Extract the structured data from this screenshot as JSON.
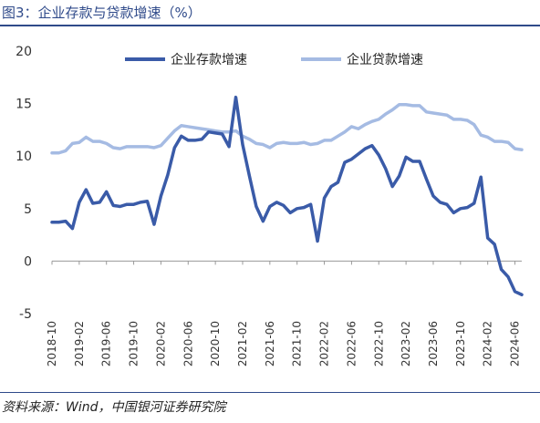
{
  "title": "图3：企业存款与贷款增速（%）",
  "source": "资料来源：Wind，中国银河证券研究院",
  "colors": {
    "title": "#2f4a8a",
    "deposit": "#3a5ba8",
    "loan": "#a5bbe3",
    "axis": "#999999"
  },
  "chart_data": {
    "type": "line",
    "title": "企业存款与贷款增速（%）",
    "xlabel": "",
    "ylabel": "",
    "ylim": [
      -5,
      20
    ],
    "yticks": [
      -5,
      0,
      5,
      10,
      15,
      20
    ],
    "grid": false,
    "legend": "top-right",
    "x": [
      "2018-10",
      "2018-11",
      "2018-12",
      "2019-01",
      "2019-02",
      "2019-03",
      "2019-04",
      "2019-05",
      "2019-06",
      "2019-07",
      "2019-08",
      "2019-09",
      "2019-10",
      "2019-11",
      "2019-12",
      "2020-01",
      "2020-02",
      "2020-03",
      "2020-04",
      "2020-05",
      "2020-06",
      "2020-07",
      "2020-08",
      "2020-09",
      "2020-10",
      "2020-11",
      "2020-12",
      "2021-01",
      "2021-02",
      "2021-03",
      "2021-04",
      "2021-05",
      "2021-06",
      "2021-07",
      "2021-08",
      "2021-09",
      "2021-10",
      "2021-11",
      "2021-12",
      "2022-01",
      "2022-02",
      "2022-03",
      "2022-04",
      "2022-05",
      "2022-06",
      "2022-07",
      "2022-08",
      "2022-09",
      "2022-10",
      "2022-11",
      "2022-12",
      "2023-01",
      "2023-02",
      "2023-03",
      "2023-04",
      "2023-05",
      "2023-06",
      "2023-07",
      "2023-08",
      "2023-09",
      "2023-10",
      "2023-11",
      "2023-12",
      "2024-01",
      "2024-02",
      "2024-03",
      "2024-04",
      "2024-05",
      "2024-06",
      "2024-07"
    ],
    "xticklabels": [
      "2018-10",
      "2019-02",
      "2019-06",
      "2019-10",
      "2020-02",
      "2020-06",
      "2020-10",
      "2021-02",
      "2021-06",
      "2021-10",
      "2022-02",
      "2022-06",
      "2022-10",
      "2023-02",
      "2023-06",
      "2023-10",
      "2024-02",
      "2024-06"
    ],
    "series": [
      {
        "name": "企业存款增速",
        "values": [
          3.7,
          3.7,
          3.8,
          3.1,
          5.6,
          6.8,
          5.5,
          5.6,
          6.6,
          5.3,
          5.2,
          5.4,
          5.4,
          5.6,
          5.7,
          3.5,
          6.2,
          8.2,
          10.8,
          11.9,
          11.5,
          11.5,
          11.6,
          12.3,
          12.2,
          12.1,
          10.9,
          15.6,
          11.1,
          8.1,
          5.2,
          3.8,
          5.2,
          5.6,
          5.3,
          4.6,
          5.0,
          5.1,
          5.4,
          1.9,
          6.0,
          7.1,
          7.5,
          9.4,
          9.7,
          10.2,
          10.7,
          11.0,
          10.1,
          8.8,
          7.1,
          8.1,
          9.9,
          9.5,
          9.5,
          7.8,
          6.2,
          5.6,
          5.4,
          4.6,
          5.0,
          5.1,
          5.5,
          8.0,
          2.2,
          1.6,
          -0.8,
          -1.5,
          -2.9,
          -3.2
        ]
      },
      {
        "name": "企业贷款增速",
        "values": [
          10.3,
          10.3,
          10.5,
          11.2,
          11.3,
          11.8,
          11.4,
          11.4,
          11.2,
          10.8,
          10.7,
          10.9,
          10.9,
          10.9,
          10.9,
          10.8,
          11.0,
          11.7,
          12.4,
          12.9,
          12.8,
          12.7,
          12.6,
          12.5,
          12.4,
          12.3,
          12.3,
          12.4,
          11.9,
          11.6,
          11.2,
          11.1,
          10.8,
          11.2,
          11.3,
          11.2,
          11.2,
          11.3,
          11.1,
          11.2,
          11.5,
          11.5,
          11.9,
          12.3,
          12.8,
          12.6,
          13.0,
          13.3,
          13.5,
          14.0,
          14.4,
          14.9,
          14.9,
          14.8,
          14.8,
          14.2,
          14.1,
          14.0,
          13.9,
          13.5,
          13.5,
          13.4,
          13.0,
          12.0,
          11.8,
          11.4,
          11.4,
          11.3,
          10.7,
          10.6
        ]
      }
    ]
  }
}
